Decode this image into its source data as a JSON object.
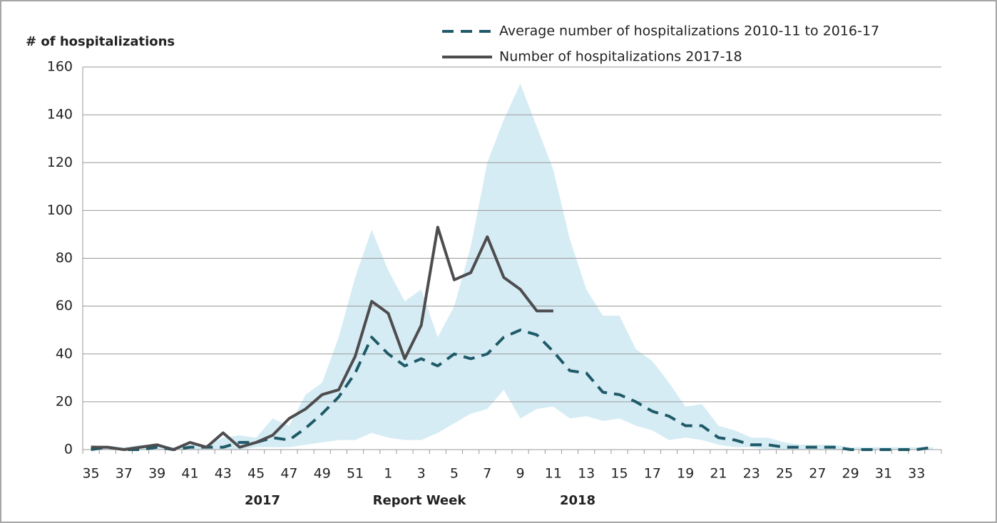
{
  "chart_data": {
    "type": "line",
    "y_label": "# of hospitalizations",
    "x_labels": [
      "2017",
      "Report Week",
      "2018"
    ],
    "categories": [
      "35",
      null,
      "37",
      null,
      "39",
      null,
      "41",
      null,
      "43",
      null,
      "45",
      null,
      "47",
      null,
      "49",
      null,
      "51",
      null,
      "1",
      null,
      "3",
      null,
      "5",
      null,
      "7",
      null,
      "9",
      null,
      "11",
      null,
      "13",
      null,
      "15",
      null,
      "17",
      null,
      "19",
      null,
      "21",
      null,
      "23",
      null,
      "25",
      null,
      "27",
      null,
      "29",
      null,
      "31",
      null,
      "33",
      null
    ],
    "range": {
      "color": "#d6ecf4",
      "upper": [
        2,
        1,
        1,
        2,
        2,
        1,
        2,
        2,
        5,
        6,
        5,
        13,
        10,
        23,
        28,
        47,
        72,
        92,
        75,
        62,
        67,
        47,
        60,
        85,
        120,
        138,
        153,
        135,
        117,
        88,
        67,
        56,
        56,
        42,
        37,
        28,
        18,
        19,
        10,
        8,
        5,
        5,
        3,
        2,
        2,
        2,
        1,
        1,
        1,
        1,
        1,
        1
      ],
      "lower": [
        0,
        0,
        0,
        0,
        0,
        0,
        0,
        0,
        0,
        0,
        1,
        1,
        1,
        2,
        3,
        4,
        4,
        7,
        5,
        4,
        4,
        7,
        11,
        15,
        17,
        25,
        13,
        17,
        18,
        13,
        14,
        12,
        13,
        10,
        8,
        4,
        5,
        4,
        2,
        1,
        1,
        0,
        0,
        0,
        0,
        0,
        0,
        0,
        0,
        0,
        0,
        0
      ]
    },
    "series": [
      {
        "name": "Average number of hospitalizations 2010-11 to 2016-17",
        "color": "#1f5a68",
        "dashed": true,
        "values": [
          0,
          1,
          0,
          0,
          1,
          0,
          1,
          1,
          1,
          3,
          3,
          5,
          4,
          9,
          15,
          22,
          32,
          47,
          40,
          35,
          38,
          35,
          40,
          38,
          40,
          47,
          50,
          48,
          41,
          33,
          32,
          24,
          23,
          20,
          16,
          14,
          10,
          10,
          5,
          4,
          2,
          2,
          1,
          1,
          1,
          1,
          0,
          0,
          0,
          0,
          0,
          1
        ]
      },
      {
        "name": "Number of hospitalizations 2017-18",
        "color": "#4d4d4f",
        "dashed": false,
        "values": [
          1,
          1,
          0,
          1,
          2,
          0,
          3,
          1,
          7,
          1,
          3,
          6,
          13,
          17,
          23,
          25,
          39,
          62,
          57,
          38,
          52,
          93,
          71,
          74,
          89,
          72,
          67,
          58,
          58,
          null,
          null,
          null,
          null,
          null,
          null,
          null,
          null,
          null,
          null,
          null,
          null,
          null,
          null,
          null,
          null,
          null,
          null,
          null,
          null,
          null,
          null,
          null
        ]
      }
    ],
    "ylim": [
      0,
      160
    ],
    "yticks": [
      0,
      20,
      40,
      60,
      80,
      100,
      120,
      140,
      160
    ],
    "grid": true
  }
}
